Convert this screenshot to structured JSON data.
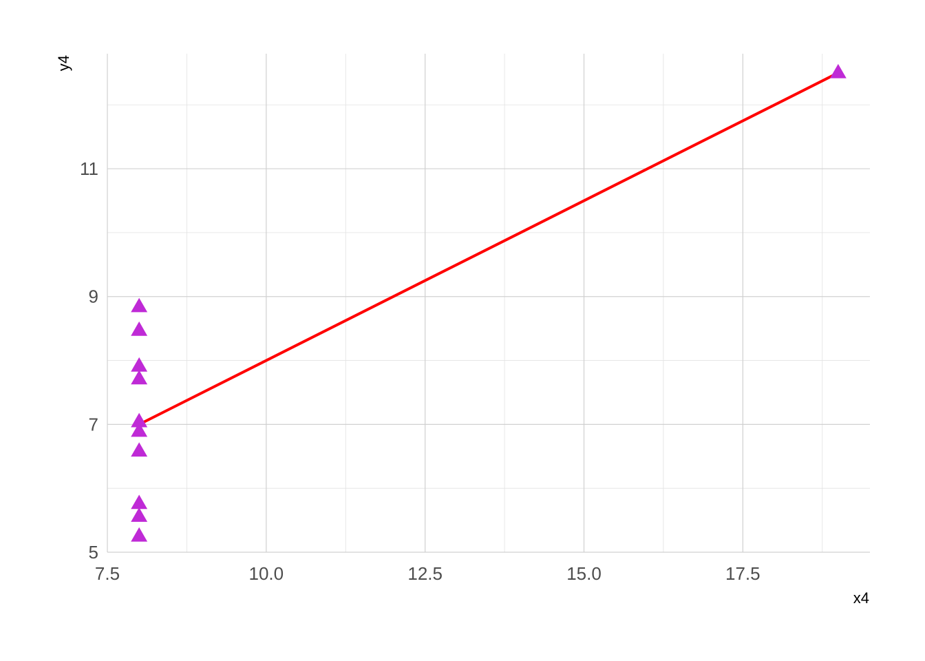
{
  "chart_data": {
    "type": "scatter",
    "title": "",
    "xlabel": "x4",
    "ylabel": "y4",
    "xlim": [
      7.5,
      19.5
    ],
    "ylim": [
      5,
      12.8
    ],
    "x_ticks": [
      7.5,
      10.0,
      12.5,
      15.0,
      17.5
    ],
    "x_tick_labels": [
      "7.5",
      "10.0",
      "12.5",
      "15.0",
      "17.5"
    ],
    "y_ticks": [
      5,
      7,
      9,
      11
    ],
    "y_tick_labels": [
      "5",
      "7",
      "9",
      "11"
    ],
    "grid": true,
    "legend": "none",
    "points": {
      "x": [
        8,
        8,
        8,
        8,
        8,
        8,
        8,
        19,
        8,
        8,
        8
      ],
      "y": [
        6.58,
        5.76,
        7.71,
        8.84,
        8.47,
        7.04,
        5.25,
        12.5,
        5.56,
        7.91,
        6.89
      ],
      "marker": "triangle",
      "color": "#bf2ad6"
    },
    "fit_line": {
      "x": [
        8,
        19
      ],
      "y": [
        7.0,
        12.5
      ],
      "color": "#ff0000"
    }
  }
}
